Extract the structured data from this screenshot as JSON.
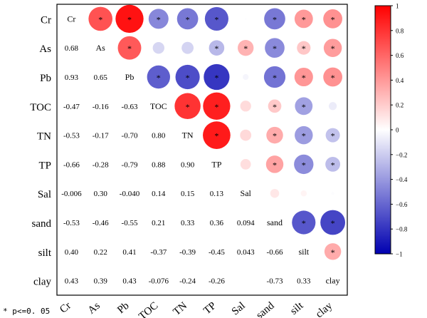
{
  "chart_data": {
    "type": "heatmap",
    "subtype": "correlation-matrix",
    "variables": [
      "Cr",
      "As",
      "Pb",
      "TOC",
      "TN",
      "TP",
      "Sal",
      "sand",
      "silt",
      "clay"
    ],
    "upper_triangle": "circles (size and color = r)",
    "lower_triangle": "numeric r values",
    "diagonal": "variable names",
    "matrix": [
      [
        1.0,
        0.68,
        0.93,
        -0.47,
        -0.53,
        -0.66,
        -0.006,
        -0.53,
        0.4,
        0.43
      ],
      [
        0.68,
        1.0,
        0.65,
        -0.16,
        -0.17,
        -0.28,
        0.3,
        -0.46,
        0.22,
        0.39
      ],
      [
        0.93,
        0.65,
        1.0,
        -0.63,
        -0.7,
        -0.79,
        -0.04,
        -0.55,
        0.41,
        0.43
      ],
      [
        -0.47,
        -0.16,
        -0.63,
        1.0,
        0.8,
        0.88,
        0.14,
        0.21,
        -0.37,
        -0.076
      ],
      [
        -0.53,
        -0.17,
        -0.7,
        0.8,
        1.0,
        0.9,
        0.15,
        0.33,
        -0.39,
        -0.24
      ],
      [
        -0.66,
        -0.28,
        -0.79,
        0.88,
        0.9,
        1.0,
        0.13,
        0.36,
        -0.45,
        -0.26
      ],
      [
        -0.006,
        0.3,
        -0.04,
        0.14,
        0.15,
        0.13,
        1.0,
        0.094,
        0.043,
        -0.01
      ],
      [
        -0.53,
        -0.46,
        -0.55,
        0.21,
        0.33,
        0.36,
        0.094,
        1.0,
        -0.66,
        -0.73
      ],
      [
        0.4,
        0.22,
        0.41,
        -0.37,
        -0.39,
        -0.45,
        0.043,
        -0.66,
        1.0,
        0.33
      ],
      [
        0.43,
        0.39,
        0.43,
        -0.076,
        -0.24,
        -0.26,
        -0.01,
        -0.73,
        0.33,
        1.0
      ]
    ],
    "lower_labels": [
      [],
      [
        "0.68"
      ],
      [
        "0.93",
        "0.65"
      ],
      [
        "-0.47",
        "-0.16",
        "-0.63"
      ],
      [
        "-0.53",
        "-0.17",
        "-0.70",
        "0.80"
      ],
      [
        "-0.66",
        "-0.28",
        "-0.79",
        "0.88",
        "0.90"
      ],
      [
        "-0.006",
        "0.30",
        "-0.040",
        "0.14",
        "0.15",
        "0.13"
      ],
      [
        "-0.53",
        "-0.46",
        "-0.55",
        "0.21",
        "0.33",
        "0.36",
        "0.094"
      ],
      [
        "0.40",
        "0.22",
        "0.41",
        "-0.37",
        "-0.39",
        "-0.45",
        "0.043",
        "-0.66"
      ],
      [
        "0.43",
        "0.39",
        "0.43",
        "-0.076",
        "-0.24",
        "-0.26",
        "",
        "-0.73",
        "0.33"
      ]
    ],
    "significance_marker": "*",
    "significant_cells": [
      [
        0,
        1
      ],
      [
        0,
        2
      ],
      [
        0,
        3
      ],
      [
        0,
        4
      ],
      [
        0,
        5
      ],
      [
        0,
        7
      ],
      [
        0,
        8
      ],
      [
        0,
        9
      ],
      [
        1,
        2
      ],
      [
        1,
        5
      ],
      [
        1,
        6
      ],
      [
        1,
        7
      ],
      [
        1,
        8
      ],
      [
        1,
        9
      ],
      [
        2,
        3
      ],
      [
        2,
        4
      ],
      [
        2,
        5
      ],
      [
        2,
        7
      ],
      [
        2,
        8
      ],
      [
        2,
        9
      ],
      [
        3,
        4
      ],
      [
        3,
        5
      ],
      [
        3,
        7
      ],
      [
        3,
        8
      ],
      [
        4,
        5
      ],
      [
        4,
        7
      ],
      [
        4,
        8
      ],
      [
        4,
        9
      ],
      [
        5,
        7
      ],
      [
        5,
        8
      ],
      [
        5,
        9
      ],
      [
        7,
        8
      ],
      [
        7,
        9
      ],
      [
        8,
        9
      ]
    ],
    "colorbar": {
      "min": -1,
      "max": 1,
      "ticks": [
        "1",
        "0.8",
        "0.6",
        "0.4",
        "0.2",
        "0",
        "−0.2",
        "−0.4",
        "−0.6",
        "−0.8",
        "−1"
      ],
      "high_color": "#ff0000",
      "mid_color": "#ffffff",
      "low_color": "#0000b0"
    },
    "legend_placement": "right",
    "footnote": "* p<=0. 05"
  }
}
